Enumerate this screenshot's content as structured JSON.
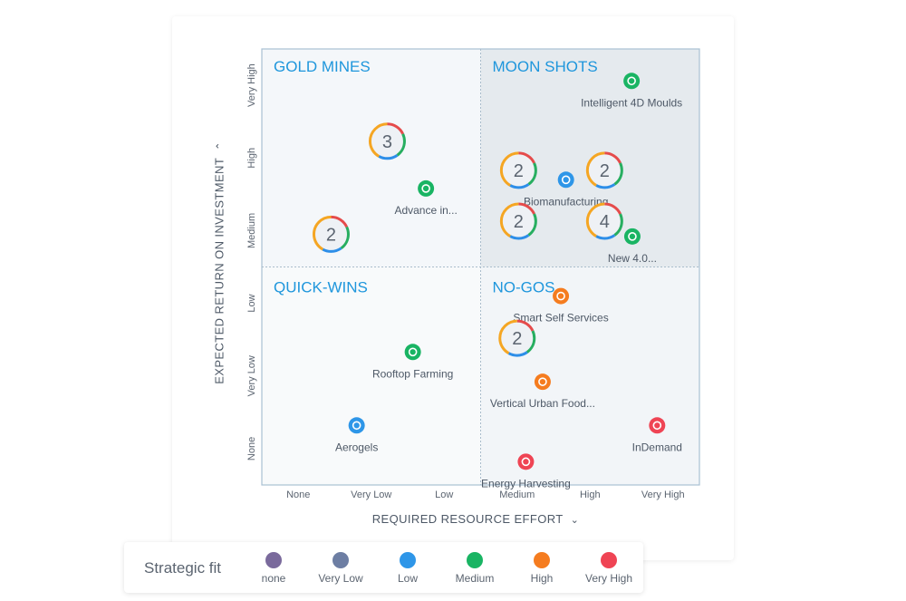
{
  "chart_data": {
    "type": "scatter",
    "xlabel": "REQUIRED RESOURCE EFFORT",
    "ylabel": "EXPECTED RETURN ON INVESTMENT",
    "x_ticks": [
      "None",
      "Very Low",
      "Low",
      "Medium",
      "High",
      "Very High"
    ],
    "y_ticks": [
      "None",
      "Very Low",
      "Low",
      "Medium",
      "High",
      "Very High"
    ],
    "xlim": [
      0,
      6
    ],
    "ylim": [
      0,
      6
    ],
    "quadrants": [
      {
        "id": "gold",
        "label": "GOLD MINES"
      },
      {
        "id": "moon",
        "label": "MOON SHOTS"
      },
      {
        "id": "quick",
        "label": "QUICK-WINS"
      },
      {
        "id": "nogo",
        "label": "NO-GOS"
      }
    ],
    "points": [
      {
        "label": "Intelligent 4D Moulds",
        "x": 5.07,
        "y": 5.56,
        "fit": "Medium"
      },
      {
        "label": "Advance in...",
        "x": 2.25,
        "y": 4.08,
        "fit": "Medium"
      },
      {
        "label": "Biomanufacturing",
        "x": 4.17,
        "y": 4.2,
        "fit": "Low"
      },
      {
        "label": "New 4.0...",
        "x": 5.08,
        "y": 3.42,
        "fit": "Medium"
      },
      {
        "label": "Smart Self Services",
        "x": 4.1,
        "y": 2.6,
        "fit": "High"
      },
      {
        "label": "Rooftop Farming",
        "x": 2.07,
        "y": 1.83,
        "fit": "Medium"
      },
      {
        "label": "Vertical Urban Food...",
        "x": 3.85,
        "y": 1.42,
        "fit": "High"
      },
      {
        "label": "Aerogels",
        "x": 1.3,
        "y": 0.82,
        "fit": "Low"
      },
      {
        "label": "InDemand",
        "x": 5.42,
        "y": 0.82,
        "fit": "Very High"
      },
      {
        "label": "Energy Harvesting",
        "x": 3.62,
        "y": 0.32,
        "fit": "Very High"
      }
    ],
    "clusters": [
      {
        "count": "3",
        "x": 1.72,
        "y": 4.73
      },
      {
        "count": "2",
        "x": 0.95,
        "y": 3.45
      },
      {
        "count": "2",
        "x": 3.52,
        "y": 4.33
      },
      {
        "count": "2",
        "x": 4.7,
        "y": 4.33
      },
      {
        "count": "2",
        "x": 3.52,
        "y": 3.63
      },
      {
        "count": "4",
        "x": 4.7,
        "y": 3.63
      },
      {
        "count": "2",
        "x": 3.5,
        "y": 2.02
      }
    ],
    "cluster_ring_colors": [
      "#e54b4b",
      "#27ae60",
      "#2d8ee8",
      "#f5a623"
    ],
    "quadrant_colors": {
      "gold": "#f4f7fa",
      "moon": "#e5eaee",
      "quick": "#f8fafb",
      "nogo": "#f2f5f8"
    },
    "label_color": "#1e96dc"
  },
  "legend": {
    "title": "Strategic fit",
    "items": [
      {
        "label": "none",
        "color": "#7a6a9c"
      },
      {
        "label": "Very Low",
        "color": "#6d7ea3"
      },
      {
        "label": "Low",
        "color": "#2e96e8"
      },
      {
        "label": "Medium",
        "color": "#19b463"
      },
      {
        "label": "High",
        "color": "#f57c1f"
      },
      {
        "label": "Very High",
        "color": "#ef4454"
      }
    ]
  }
}
